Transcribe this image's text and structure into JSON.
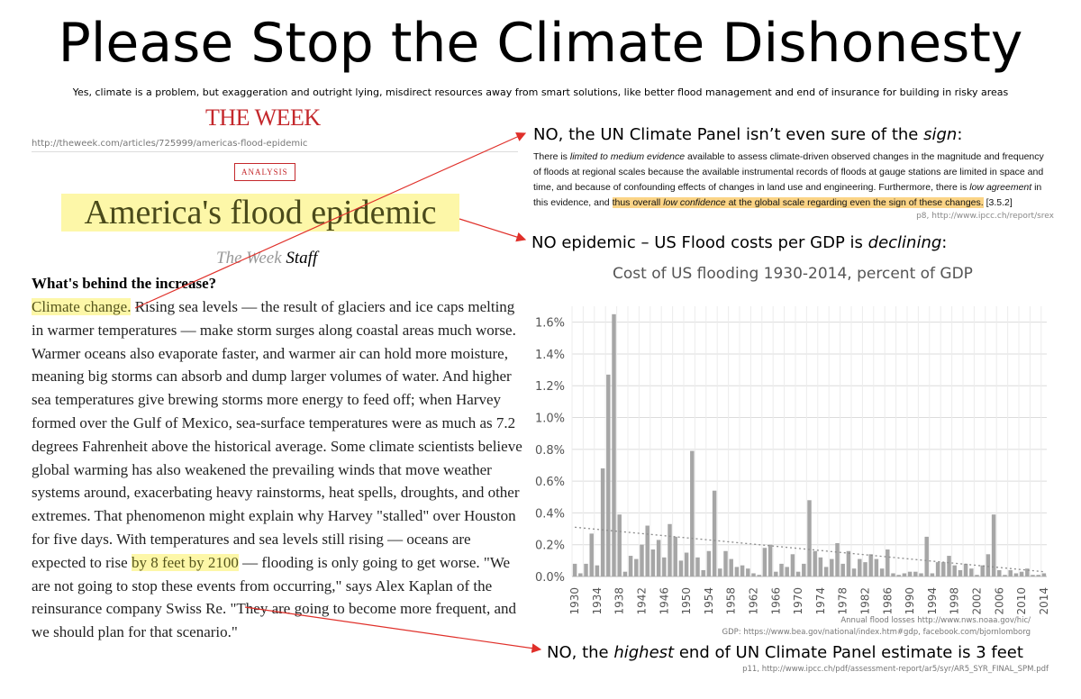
{
  "title": "Please Stop the Climate Dishonesty",
  "subtitle": "Yes, climate is a problem, but exaggeration and outright lying, misdirect resources away from smart solutions, like better flood management and end of insurance for building in risky areas",
  "article": {
    "logo": "THE WEEK",
    "url": "http://theweek.com/articles/725999/americas-flood-epidemic",
    "badge": "ANALYSIS",
    "headline": "America's flood epidemic",
    "byline_pub": "The Week",
    "byline_staff": "Staff",
    "question": "What's behind the increase?",
    "hl1": "Climate change.",
    "body1": " Rising sea levels — the result of glaciers and ice caps melting in warmer temperatures — make storm surges along coastal areas much worse. Warmer oceans also evaporate faster, and warmer air can hold more moisture, meaning big storms can absorb and dump larger volumes of water. And higher sea temperatures give brewing storms more energy to feed off; when Harvey formed over the Gulf of Mexico, sea-surface temperatures were as much as 7.2 degrees Fahrenheit above the historical average. Some climate scientists believe global warming has also weakened the prevailing winds that move weather systems around, exacerbating heavy rainstorms, heat spells, droughts, and other extremes. That phenomenon might explain why Harvey \"stalled\" over Houston for five days. With temperatures and sea levels still rising — oceans are expected to rise ",
    "hl2": "by 8 feet by 2100",
    "body2": " — flooding is only going to get worse. \"We are not going to stop these events from occurring,\" says Alex Kaplan of the reinsurance company Swiss Re. \"They are going to become more frequent, and we should plan for that scenario.\""
  },
  "rebuttals": {
    "sign_pre": "NO, the UN Climate Panel isn’t even sure of the ",
    "sign_em": "sign",
    "sign_post": ":",
    "epidemic_pre": "NO epidemic – US Flood costs per GDP is ",
    "epidemic_em": "declining",
    "epidemic_post": ":",
    "sea_pre": "NO, the ",
    "sea_em": "highest",
    "sea_post": " end of UN Climate Panel estimate is 3 feet"
  },
  "ipcc": {
    "q1": "There is ",
    "q1em": "limited to medium evidence",
    "q2": " available to assess climate-driven observed changes in the magnitude and frequency of floods at regional scales because the available instrumental records of floods at gauge stations are limited in space and time, and because of confounding effects of changes in land use and engineering. Furthermore, there is ",
    "q2em": "low agreement",
    "q3": " in this evidence, and ",
    "q4a": "thus overall ",
    "q4em": "low confidence",
    "q4b": " at the global scale regarding even the sign of these changes.",
    "q5": " [3.5.2]",
    "source": "p8, http://www.ipcc.ch/report/srex"
  },
  "chart_src1": "Annual flood losses http://www.nws.noaa.gov/hic/",
  "chart_src2": "GDP: https://www.bea.gov/national/index.htm#gdp, facebook.com/bjornlomborg",
  "bottom_src": "p11, http://www.ipcc.ch/pdf/assessment-report/ar5/syr/AR5_SYR_FINAL_SPM.pdf",
  "colors": {
    "bar": "#a6a6a6",
    "trend": "#8c8c8c",
    "grid": "#dcdcdc",
    "arrow": "#e0302a",
    "highlight": "#fdf7a8",
    "logo": "#c4282c"
  },
  "chart_data": {
    "type": "bar",
    "title": "Cost of US flooding 1930-2014, percent of GDP",
    "xlabel": "",
    "ylabel": "",
    "ylim": [
      0,
      0.017
    ],
    "y_ticks": [
      0,
      0.002,
      0.004,
      0.006,
      0.008,
      0.01,
      0.012,
      0.014,
      0.016
    ],
    "y_tick_labels": [
      "0.0%",
      "0.2%",
      "0.4%",
      "0.6%",
      "0.8%",
      "1.0%",
      "1.2%",
      "1.4%",
      "1.6%"
    ],
    "x_tick_labels": [
      "1930",
      "1934",
      "1938",
      "1942",
      "1946",
      "1950",
      "1954",
      "1958",
      "1962",
      "1966",
      "1970",
      "1974",
      "1978",
      "1982",
      "1986",
      "1990",
      "1994",
      "1998",
      "2002",
      "2006",
      "2010",
      "2014"
    ],
    "grid": true,
    "years": [
      1930,
      1931,
      1932,
      1933,
      1934,
      1935,
      1936,
      1937,
      1938,
      1939,
      1940,
      1941,
      1942,
      1943,
      1944,
      1945,
      1946,
      1947,
      1948,
      1949,
      1950,
      1951,
      1952,
      1953,
      1954,
      1955,
      1956,
      1957,
      1958,
      1959,
      1960,
      1961,
      1962,
      1963,
      1964,
      1965,
      1966,
      1967,
      1968,
      1969,
      1970,
      1971,
      1972,
      1973,
      1974,
      1975,
      1976,
      1977,
      1978,
      1979,
      1980,
      1981,
      1982,
      1983,
      1984,
      1985,
      1986,
      1987,
      1988,
      1989,
      1990,
      1991,
      1992,
      1993,
      1994,
      1995,
      1996,
      1997,
      1998,
      1999,
      2000,
      2001,
      2002,
      2003,
      2004,
      2005,
      2006,
      2007,
      2008,
      2009,
      2010,
      2011,
      2012,
      2013,
      2014
    ],
    "values": [
      0.0008,
      0.0002,
      0.0008,
      0.0027,
      0.0007,
      0.0068,
      0.0127,
      0.0165,
      0.0039,
      0.0003,
      0.0013,
      0.0011,
      0.002,
      0.0032,
      0.0017,
      0.0023,
      0.0012,
      0.0033,
      0.0025,
      0.001,
      0.0015,
      0.0079,
      0.0012,
      0.0004,
      0.0016,
      0.0054,
      0.0005,
      0.0016,
      0.0011,
      0.0006,
      0.0007,
      0.0005,
      0.0002,
      0.0001,
      0.0018,
      0.002,
      0.0003,
      0.0008,
      0.0006,
      0.0014,
      0.0003,
      0.0008,
      0.0048,
      0.0016,
      0.0012,
      0.0006,
      0.0011,
      0.0021,
      0.0008,
      0.0016,
      0.0005,
      0.0011,
      0.0009,
      0.0014,
      0.0011,
      0.0005,
      0.0017,
      0.0002,
      0.0001,
      0.0002,
      0.0003,
      0.0003,
      0.0002,
      0.0025,
      0.0002,
      0.0009,
      0.0009,
      0.0013,
      0.0007,
      0.0004,
      0.0008,
      0.0005,
      0.0001,
      0.0007,
      0.0014,
      0.0039,
      0.0004,
      0.0001,
      0.0004,
      0.0002,
      0.0003,
      0.0005,
      0.0001,
      0.0001,
      0.0002
    ],
    "trend": {
      "start": [
        1930,
        0.0031
      ],
      "end": [
        2014,
        0.0003
      ]
    }
  }
}
